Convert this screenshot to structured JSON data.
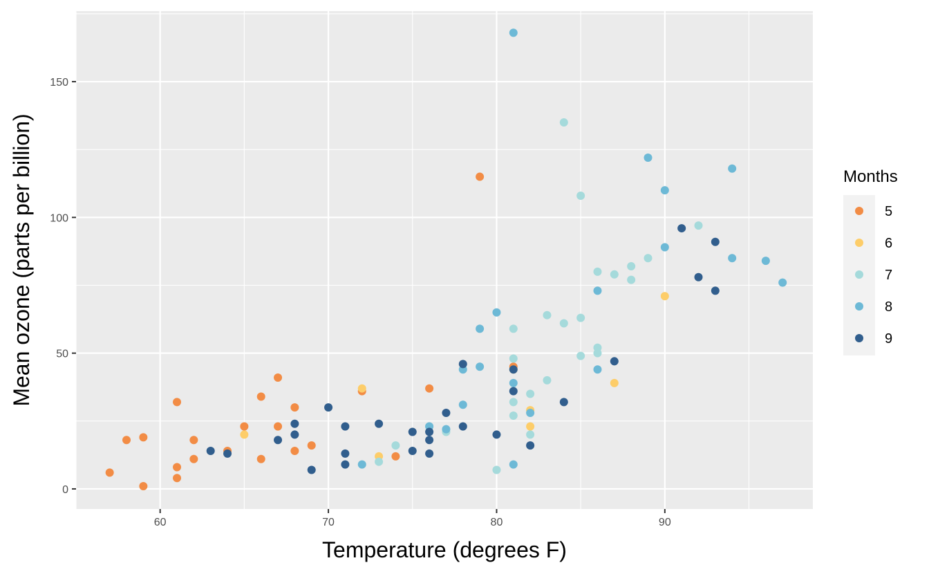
{
  "chart_data": {
    "type": "scatter",
    "title": "",
    "xlabel": "Temperature (degrees F)",
    "ylabel": "Mean ozone (parts per billion)",
    "xlim": [
      55,
      98.8
    ],
    "ylim": [
      -7.4,
      176
    ],
    "x_ticks": [
      60,
      70,
      80,
      90
    ],
    "x_tick_labels": [
      "60",
      "70",
      "80",
      "90"
    ],
    "y_ticks": [
      0,
      50,
      100,
      150
    ],
    "y_tick_labels": [
      "0",
      "50",
      "100",
      "150"
    ],
    "grid": true,
    "legend": {
      "title": "Months",
      "placement": "right"
    },
    "series": [
      {
        "name": "5",
        "color": "#F28C45",
        "points": [
          [
            57,
            6
          ],
          [
            58,
            18
          ],
          [
            59,
            1
          ],
          [
            59,
            19
          ],
          [
            61,
            4
          ],
          [
            61,
            8
          ],
          [
            61,
            32
          ],
          [
            62,
            11
          ],
          [
            62,
            18
          ],
          [
            64,
            14
          ],
          [
            65,
            23
          ],
          [
            66,
            11
          ],
          [
            66,
            34
          ],
          [
            67,
            23
          ],
          [
            67,
            41
          ],
          [
            68,
            14
          ],
          [
            68,
            30
          ],
          [
            69,
            16
          ],
          [
            72,
            36
          ],
          [
            74,
            12
          ],
          [
            76,
            37
          ],
          [
            79,
            115
          ],
          [
            81,
            45
          ]
        ]
      },
      {
        "name": "6",
        "color": "#FDCD69",
        "points": [
          [
            65,
            20
          ],
          [
            72,
            37
          ],
          [
            73,
            12
          ],
          [
            81,
            44
          ],
          [
            82,
            23
          ],
          [
            82,
            29
          ],
          [
            87,
            39
          ],
          [
            90,
            71
          ]
        ]
      },
      {
        "name": "7",
        "color": "#A5DADB",
        "points": [
          [
            73,
            10
          ],
          [
            74,
            16
          ],
          [
            76,
            23
          ],
          [
            77,
            21
          ],
          [
            80,
            7
          ],
          [
            81,
            27
          ],
          [
            81,
            32
          ],
          [
            81,
            48
          ],
          [
            81,
            59
          ],
          [
            82,
            20
          ],
          [
            82,
            35
          ],
          [
            83,
            40
          ],
          [
            83,
            64
          ],
          [
            84,
            61
          ],
          [
            84,
            135
          ],
          [
            85,
            49
          ],
          [
            85,
            63
          ],
          [
            85,
            108
          ],
          [
            86,
            50
          ],
          [
            86,
            52
          ],
          [
            86,
            80
          ],
          [
            87,
            79
          ],
          [
            88,
            77
          ],
          [
            88,
            82
          ],
          [
            89,
            85
          ],
          [
            92,
            97
          ]
        ]
      },
      {
        "name": "8",
        "color": "#6DB9D6",
        "points": [
          [
            72,
            9
          ],
          [
            76,
            23
          ],
          [
            77,
            22
          ],
          [
            78,
            31
          ],
          [
            78,
            44
          ],
          [
            79,
            45
          ],
          [
            79,
            59
          ],
          [
            80,
            65
          ],
          [
            81,
            9
          ],
          [
            81,
            39
          ],
          [
            81,
            168
          ],
          [
            82,
            28
          ],
          [
            86,
            44
          ],
          [
            86,
            73
          ],
          [
            89,
            122
          ],
          [
            90,
            89
          ],
          [
            90,
            110
          ],
          [
            94,
            85
          ],
          [
            94,
            118
          ],
          [
            96,
            84
          ],
          [
            97,
            76
          ]
        ]
      },
      {
        "name": "9",
        "color": "#315E8D",
        "points": [
          [
            63,
            14
          ],
          [
            64,
            13
          ],
          [
            67,
            18
          ],
          [
            68,
            20
          ],
          [
            68,
            24
          ],
          [
            69,
            7
          ],
          [
            70,
            30
          ],
          [
            71,
            9
          ],
          [
            71,
            13
          ],
          [
            71,
            23
          ],
          [
            73,
            24
          ],
          [
            75,
            14
          ],
          [
            75,
            21
          ],
          [
            76,
            13
          ],
          [
            76,
            18
          ],
          [
            76,
            21
          ],
          [
            77,
            28
          ],
          [
            78,
            23
          ],
          [
            78,
            46
          ],
          [
            80,
            20
          ],
          [
            81,
            36
          ],
          [
            81,
            44
          ],
          [
            82,
            16
          ],
          [
            84,
            32
          ],
          [
            87,
            47
          ],
          [
            91,
            96
          ],
          [
            92,
            78
          ],
          [
            93,
            73
          ],
          [
            93,
            91
          ]
        ]
      }
    ]
  }
}
